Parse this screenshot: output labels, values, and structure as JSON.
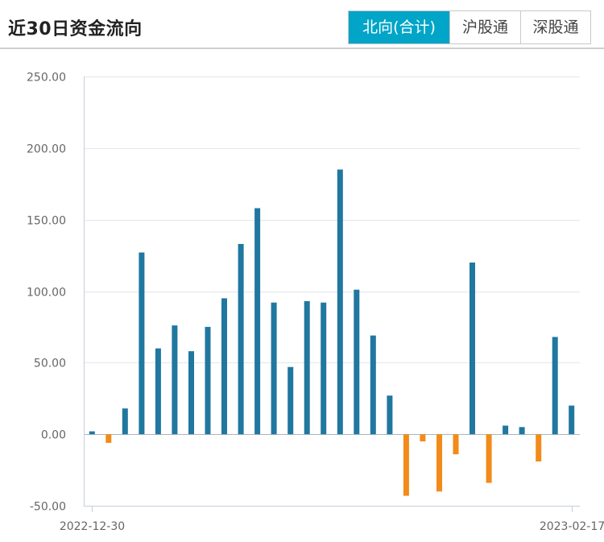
{
  "header": {
    "title": "近30日资金流向",
    "tabs": [
      {
        "label": "北向(合计)",
        "active": true
      },
      {
        "label": "沪股通",
        "active": false
      },
      {
        "label": "深股通",
        "active": false
      }
    ]
  },
  "colors": {
    "positive": "#20779f",
    "negative": "#f28b1a",
    "active_tab": "#00a5c7"
  },
  "chart_data": {
    "type": "bar",
    "title": "",
    "xlabel": "",
    "ylabel": "",
    "ylim": [
      -50,
      250
    ],
    "yticks": [
      "250.00",
      "200.00",
      "150.00",
      "100.00",
      "50.00",
      "0.00",
      "-50.00"
    ],
    "x_first_label": "2022-12-30",
    "x_last_label": "2023-02-17",
    "grid": true,
    "values": [
      2,
      -6,
      18,
      127,
      60,
      76,
      58,
      75,
      95,
      133,
      158,
      92,
      47,
      93,
      92,
      185,
      101,
      69,
      27,
      -43,
      -5,
      -40,
      -14,
      120,
      -34,
      6,
      5,
      -19,
      68,
      20
    ]
  }
}
